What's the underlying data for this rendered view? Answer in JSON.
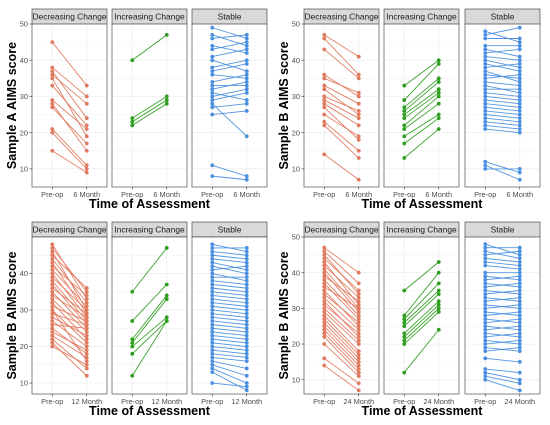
{
  "colors": {
    "decreasing": "#E07A5F",
    "increasing": "#2E9E1F",
    "stable": "#4A8FE0",
    "strip_bg": "#D9D9D9",
    "grid": "#EBEBEB"
  },
  "chart_data": [
    {
      "type": "line",
      "ylabel": "Sample A AIMS score",
      "xlabel": "Time of Assessment",
      "x_ticks": [
        "Pre-op",
        "6 Month"
      ],
      "ylim": [
        5,
        50
      ],
      "y_ticks": [
        10,
        20,
        30,
        40,
        50
      ],
      "facets": [
        "Decreasing Change",
        "Increasing Change",
        "Stable"
      ],
      "grid": true,
      "series": [
        {
          "group": "Decreasing Change",
          "pairs": [
            [
              45,
              33
            ],
            [
              38,
              30
            ],
            [
              37,
              24
            ],
            [
              36,
              28
            ],
            [
              35,
              19
            ],
            [
              33,
              22
            ],
            [
              29,
              21
            ],
            [
              28,
              15
            ],
            [
              27,
              17
            ],
            [
              21,
              11
            ],
            [
              20,
              10
            ],
            [
              15,
              9
            ]
          ]
        },
        {
          "group": "Increasing Change",
          "pairs": [
            [
              40,
              47
            ],
            [
              24,
              30
            ],
            [
              22,
              28
            ],
            [
              23,
              29
            ]
          ]
        },
        {
          "group": "Stable",
          "pairs": [
            [
              49,
              46
            ],
            [
              47,
              44
            ],
            [
              46,
              47
            ],
            [
              44,
              42
            ],
            [
              43,
              45
            ],
            [
              41,
              43
            ],
            [
              40,
              37
            ],
            [
              38,
              40
            ],
            [
              37,
              39
            ],
            [
              36,
              35
            ],
            [
              34,
              36
            ],
            [
              33,
              33
            ],
            [
              32,
              34
            ],
            [
              31,
              29
            ],
            [
              30,
              32
            ],
            [
              29,
              31
            ],
            [
              27,
              28
            ],
            [
              25,
              26
            ],
            [
              11,
              8
            ],
            [
              8,
              7
            ],
            [
              28,
              19
            ]
          ]
        }
      ]
    },
    {
      "type": "line",
      "ylabel": "Sample B AIMS score",
      "xlabel": "Time of Assessment",
      "x_ticks": [
        "Pre-op",
        "6 Month"
      ],
      "ylim": [
        5,
        50
      ],
      "y_ticks": [
        10,
        20,
        30,
        40,
        50
      ],
      "facets": [
        "Decreasing Change",
        "Increasing Change",
        "Stable"
      ],
      "grid": true,
      "series": [
        {
          "group": "Decreasing Change",
          "pairs": [
            [
              47,
              41
            ],
            [
              46,
              36
            ],
            [
              43,
              35
            ],
            [
              36,
              30
            ],
            [
              35,
              31
            ],
            [
              33,
              28
            ],
            [
              32,
              25
            ],
            [
              30,
              26
            ],
            [
              29,
              24
            ],
            [
              28,
              22
            ],
            [
              25,
              19
            ],
            [
              23,
              15
            ],
            [
              22,
              13
            ],
            [
              14,
              7
            ],
            [
              27,
              18
            ]
          ]
        },
        {
          "group": "Increasing Change",
          "pairs": [
            [
              33,
              40
            ],
            [
              29,
              39
            ],
            [
              27,
              35
            ],
            [
              25,
              32
            ],
            [
              24,
              31
            ],
            [
              22,
              30
            ],
            [
              21,
              28
            ],
            [
              19,
              25
            ],
            [
              17,
              24
            ],
            [
              13,
              21
            ],
            [
              26,
              34
            ]
          ]
        },
        {
          "group": "Stable",
          "pairs": [
            [
              48,
              45
            ],
            [
              47,
              49
            ],
            [
              46,
              46
            ],
            [
              44,
              44
            ],
            [
              43,
              41
            ],
            [
              42,
              43
            ],
            [
              41,
              40
            ],
            [
              40,
              38
            ],
            [
              39,
              37
            ],
            [
              38,
              39
            ],
            [
              37,
              34
            ],
            [
              36,
              35
            ],
            [
              35,
              36
            ],
            [
              34,
              33
            ],
            [
              33,
              31
            ],
            [
              32,
              32
            ],
            [
              31,
              30
            ],
            [
              30,
              29
            ],
            [
              29,
              28
            ],
            [
              28,
              27
            ],
            [
              27,
              26
            ],
            [
              26,
              25
            ],
            [
              25,
              24
            ],
            [
              24,
              23
            ],
            [
              23,
              22
            ],
            [
              22,
              21
            ],
            [
              21,
              20
            ],
            [
              12,
              9
            ],
            [
              11,
              7
            ],
            [
              10,
              10
            ]
          ]
        }
      ]
    },
    {
      "type": "line",
      "ylabel": "Sample B AIMS score",
      "xlabel": "Time of Assessment",
      "x_ticks": [
        "Pre-op",
        "12 Month"
      ],
      "ylim": [
        7,
        50
      ],
      "y_ticks": [
        10,
        20,
        30,
        40
      ],
      "facets": [
        "Decreasing Change",
        "Increasing Change",
        "Stable"
      ],
      "grid": true,
      "series": [
        {
          "group": "Decreasing Change",
          "pairs": [
            [
              48,
              33
            ],
            [
              47,
              35
            ],
            [
              46,
              30
            ],
            [
              45,
              36
            ],
            [
              44,
              32
            ],
            [
              43,
              29
            ],
            [
              42,
              34
            ],
            [
              41,
              31
            ],
            [
              40,
              28
            ],
            [
              39,
              30
            ],
            [
              38,
              27
            ],
            [
              37,
              26
            ],
            [
              36,
              29
            ],
            [
              35,
              25
            ],
            [
              34,
              28
            ],
            [
              33,
              24
            ],
            [
              32,
              22
            ],
            [
              31,
              27
            ],
            [
              30,
              21
            ],
            [
              29,
              26
            ],
            [
              28,
              23
            ],
            [
              27,
              20
            ],
            [
              26,
              25
            ],
            [
              25,
              18
            ],
            [
              24,
              19
            ],
            [
              23,
              17
            ],
            [
              22,
              14
            ],
            [
              21,
              12
            ],
            [
              20,
              15
            ],
            [
              30,
              16
            ]
          ]
        },
        {
          "group": "Increasing Change",
          "pairs": [
            [
              35,
              47
            ],
            [
              27,
              37
            ],
            [
              22,
              34
            ],
            [
              21,
              33
            ],
            [
              20,
              28
            ],
            [
              18,
              27
            ],
            [
              12,
              27
            ]
          ]
        },
        {
          "group": "Stable",
          "pairs": [
            [
              48,
              46
            ],
            [
              47,
              47
            ],
            [
              46,
              45
            ],
            [
              45,
              44
            ],
            [
              44,
              43
            ],
            [
              43,
              41
            ],
            [
              42,
              40
            ],
            [
              41,
              42
            ],
            [
              40,
              38
            ],
            [
              39,
              39
            ],
            [
              38,
              37
            ],
            [
              37,
              36
            ],
            [
              36,
              35
            ],
            [
              35,
              34
            ],
            [
              34,
              33
            ],
            [
              33,
              32
            ],
            [
              32,
              31
            ],
            [
              31,
              30
            ],
            [
              30,
              29
            ],
            [
              29,
              28
            ],
            [
              28,
              27
            ],
            [
              27,
              26
            ],
            [
              26,
              25
            ],
            [
              25,
              24
            ],
            [
              24,
              23
            ],
            [
              23,
              22
            ],
            [
              22,
              21
            ],
            [
              21,
              20
            ],
            [
              20,
              19
            ],
            [
              19,
              18
            ],
            [
              18,
              17
            ],
            [
              17,
              16
            ],
            [
              16,
              14
            ],
            [
              15,
              12
            ],
            [
              14,
              10
            ],
            [
              13,
              8
            ],
            [
              10,
              9
            ]
          ]
        }
      ]
    },
    {
      "type": "line",
      "ylabel": "Sample B AIMS score",
      "xlabel": "Time of Assessment",
      "x_ticks": [
        "Pre-op",
        "24 Month"
      ],
      "ylim": [
        6,
        50
      ],
      "y_ticks": [
        10,
        20,
        30,
        40,
        50
      ],
      "facets": [
        "Decreasing Change",
        "Increasing Change",
        "Stable"
      ],
      "grid": true,
      "series": [
        {
          "group": "Decreasing Change",
          "pairs": [
            [
              47,
              40
            ],
            [
              46,
              37
            ],
            [
              45,
              34
            ],
            [
              44,
              35
            ],
            [
              43,
              31
            ],
            [
              42,
              33
            ],
            [
              41,
              30
            ],
            [
              40,
              29
            ],
            [
              39,
              32
            ],
            [
              38,
              28
            ],
            [
              37,
              27
            ],
            [
              36,
              30
            ],
            [
              35,
              25
            ],
            [
              34,
              26
            ],
            [
              33,
              24
            ],
            [
              32,
              22
            ],
            [
              31,
              23
            ],
            [
              30,
              21
            ],
            [
              29,
              20
            ],
            [
              28,
              18
            ],
            [
              27,
              17
            ],
            [
              26,
              16
            ],
            [
              25,
              15
            ],
            [
              24,
              14
            ],
            [
              23,
              13
            ],
            [
              22,
              12
            ],
            [
              20,
              11
            ],
            [
              14,
              7
            ],
            [
              16,
              9
            ]
          ]
        },
        {
          "group": "Increasing Change",
          "pairs": [
            [
              35,
              43
            ],
            [
              28,
              40
            ],
            [
              27,
              37
            ],
            [
              26,
              35
            ],
            [
              25,
              34
            ],
            [
              23,
              32
            ],
            [
              22,
              31
            ],
            [
              21,
              30
            ],
            [
              20,
              29
            ],
            [
              12,
              24
            ]
          ]
        },
        {
          "group": "Stable",
          "pairs": [
            [
              48,
              45
            ],
            [
              47,
              47
            ],
            [
              46,
              44
            ],
            [
              45,
              46
            ],
            [
              44,
              43
            ],
            [
              43,
              42
            ],
            [
              42,
              41
            ],
            [
              40,
              40
            ],
            [
              39,
              38
            ],
            [
              38,
              39
            ],
            [
              37,
              36
            ],
            [
              36,
              37
            ],
            [
              35,
              34
            ],
            [
              34,
              35
            ],
            [
              33,
              32
            ],
            [
              32,
              33
            ],
            [
              31,
              30
            ],
            [
              30,
              31
            ],
            [
              29,
              28
            ],
            [
              28,
              29
            ],
            [
              27,
              26
            ],
            [
              26,
              27
            ],
            [
              25,
              24
            ],
            [
              24,
              25
            ],
            [
              23,
              22
            ],
            [
              22,
              23
            ],
            [
              21,
              20
            ],
            [
              20,
              21
            ],
            [
              19,
              18
            ],
            [
              18,
              19
            ],
            [
              16,
              15
            ],
            [
              13,
              12
            ],
            [
              12,
              10
            ],
            [
              11,
              9
            ],
            [
              10,
              7
            ]
          ]
        }
      ]
    }
  ]
}
